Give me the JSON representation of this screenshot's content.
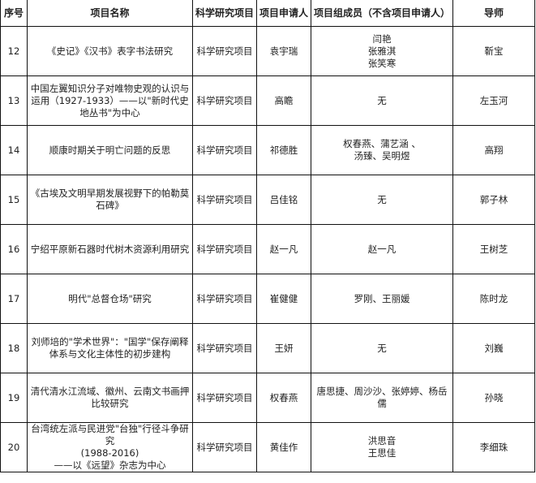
{
  "headers": [
    "序号",
    "项目名称",
    "科学研究项目",
    "项目申请人",
    "项目组成员（不含项目申请人）",
    "导师"
  ],
  "rows": [
    {
      "no": "12",
      "name": "《史记》《汉书》表字书法研究",
      "type": "科学研究项目",
      "applicant": "袁宇瑞",
      "members": "闫艳\n张雅淇\n张笑寒",
      "advisor": "靳宝"
    },
    {
      "no": "13",
      "name": "中国左翼知识分子对唯物史观的认识与运用（1927-1933）——以\"新时代史地丛书\"为中心",
      "type": "科学研究项目",
      "applicant": "高瞻",
      "members": "无",
      "advisor": "左玉河"
    },
    {
      "no": "14",
      "name": "顺康时期关于明亡问题的反思",
      "type": "科学研究项目",
      "applicant": "祁德胜",
      "members": "权春燕、蒲艺涵 、\n汤臻、吴明煜",
      "advisor": "高翔"
    },
    {
      "no": "15",
      "name": "《古埃及文明早期发展视野下的帕勒莫石碑》",
      "type": "科学研究项目",
      "applicant": "吕佳铭",
      "members": "无",
      "advisor": "郭子林"
    },
    {
      "no": "16",
      "name": "宁绍平原新石器时代树木资源利用研究",
      "type": "科学研究项目",
      "applicant": "赵一凡",
      "members": "赵一凡",
      "advisor": "王树芝"
    },
    {
      "no": "17",
      "name": "明代\"总督仓场\"研究",
      "type": "科学研究项目",
      "applicant": "崔健健",
      "members": "罗刚、王丽媛",
      "advisor": "陈时龙"
    },
    {
      "no": "18",
      "name": "刘师培的\"学术世界\"：\"国学\"保存阐释体系与文化主体性的初步建构",
      "type": "科学研究项目",
      "applicant": "王妍",
      "members": "无",
      "advisor": "刘巍"
    },
    {
      "no": "19",
      "name": "清代清水江流域、徽州、云南文书画押比较研究",
      "type": "科学研究项目",
      "applicant": "权春燕",
      "members": "唐思捷、周沙沙、张婷婷、杨岳儒",
      "advisor": "孙晓"
    },
    {
      "no": "20",
      "name": "台湾统左派与民进党\"台独\"行径斗争研究\n(1988-2016)\n——以《远望》杂志为中心",
      "type": "科学研究项目",
      "applicant": "黄佳作",
      "members": "洪思音\n王思佳",
      "advisor": "李细珠"
    }
  ]
}
